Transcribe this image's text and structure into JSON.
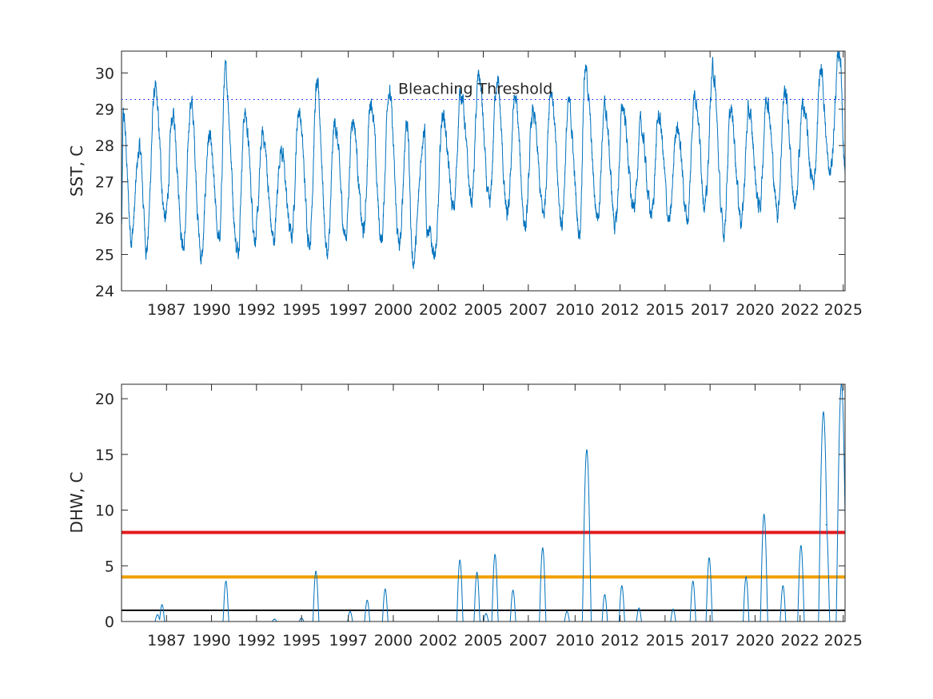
{
  "chart_data": [
    {
      "type": "line",
      "ylabel": "SST, C",
      "xlim": [
        1985.0,
        2025.2
      ],
      "ylim": [
        24,
        30.6
      ],
      "yticks": [
        24,
        25,
        26,
        27,
        28,
        29,
        30
      ],
      "xticks": [
        "1987",
        "1990",
        "1992",
        "1995",
        "1997",
        "2000",
        "2002",
        "2005",
        "2007",
        "2010",
        "2012",
        "2015",
        "2017",
        "2020",
        "2022",
        "2025"
      ],
      "xtick_values": [
        1987.5,
        1990.0,
        1992.5,
        1995.0,
        1997.6,
        2000.1,
        2002.6,
        2005.1,
        2007.6,
        2010.2,
        2012.7,
        2015.2,
        2017.7,
        2020.2,
        2022.7,
        2025.1
      ],
      "grid": false,
      "threshold": {
        "label": "Bleaching Threshold",
        "value": 29.27,
        "color": "#0000ff",
        "style": "dotted"
      },
      "series": [
        {
          "color": "#0072bd",
          "seasonal_peaks": [
            [
              1985.1,
              28.8
            ],
            [
              1986.0,
              27.9
            ],
            [
              1986.85,
              29.5
            ],
            [
              1987.85,
              28.8
            ],
            [
              1988.85,
              29.2
            ],
            [
              1989.85,
              28.2
            ],
            [
              1990.75,
              30.0
            ],
            [
              1991.85,
              28.9
            ],
            [
              1992.85,
              28.3
            ],
            [
              1993.85,
              27.9
            ],
            [
              1994.85,
              29.0
            ],
            [
              1995.85,
              29.6
            ],
            [
              1996.85,
              28.6
            ],
            [
              1997.85,
              28.8
            ],
            [
              1998.85,
              29.3
            ],
            [
              1999.85,
              29.6
            ],
            [
              2000.85,
              28.7
            ],
            [
              2001.85,
              28.6
            ],
            [
              2002.85,
              28.9
            ],
            [
              2003.85,
              29.5
            ],
            [
              2004.85,
              29.9
            ],
            [
              2005.85,
              29.8
            ],
            [
              2006.85,
              29.3
            ],
            [
              2007.85,
              28.9
            ],
            [
              2008.85,
              29.6
            ],
            [
              2009.85,
              29.1
            ],
            [
              2010.75,
              30.1
            ],
            [
              2011.85,
              29.0
            ],
            [
              2012.85,
              29.1
            ],
            [
              2013.85,
              28.5
            ],
            [
              2014.85,
              28.8
            ],
            [
              2015.85,
              28.6
            ],
            [
              2016.85,
              29.5
            ],
            [
              2017.85,
              30.1
            ],
            [
              2018.85,
              28.9
            ],
            [
              2019.85,
              28.9
            ],
            [
              2020.85,
              29.4
            ],
            [
              2021.85,
              29.5
            ],
            [
              2022.85,
              29.1
            ],
            [
              2023.85,
              30.1
            ],
            [
              2024.9,
              30.6
            ]
          ],
          "seasonal_troughs": [
            [
              1985.0,
              25.8
            ],
            [
              1985.55,
              25.5
            ],
            [
              1986.4,
              25.2
            ],
            [
              1987.45,
              26.0
            ],
            [
              1988.45,
              25.2
            ],
            [
              1989.45,
              24.9
            ],
            [
              1990.45,
              25.4
            ],
            [
              1991.45,
              25.1
            ],
            [
              1992.45,
              25.5
            ],
            [
              1993.45,
              25.4
            ],
            [
              1994.45,
              25.5
            ],
            [
              1995.45,
              25.4
            ],
            [
              1996.45,
              25.0
            ],
            [
              1997.45,
              25.5
            ],
            [
              1998.45,
              25.6
            ],
            [
              1999.45,
              25.4
            ],
            [
              2000.45,
              25.2
            ],
            [
              2001.2,
              24.8
            ],
            [
              2001.95,
              25.6
            ],
            [
              2002.45,
              25.1
            ],
            [
              2003.45,
              26.2
            ],
            [
              2004.45,
              26.5
            ],
            [
              2005.45,
              26.3
            ],
            [
              2006.45,
              26.0
            ],
            [
              2007.45,
              25.8
            ],
            [
              2008.45,
              26.1
            ],
            [
              2009.45,
              25.9
            ],
            [
              2010.45,
              25.6
            ],
            [
              2011.45,
              26.1
            ],
            [
              2012.45,
              25.8
            ],
            [
              2013.45,
              26.2
            ],
            [
              2014.45,
              26.1
            ],
            [
              2015.45,
              25.9
            ],
            [
              2016.45,
              26.0
            ],
            [
              2017.45,
              26.4
            ],
            [
              2018.45,
              25.6
            ],
            [
              2019.45,
              26.0
            ],
            [
              2020.45,
              26.3
            ],
            [
              2021.45,
              26.2
            ],
            [
              2022.45,
              26.3
            ],
            [
              2023.45,
              26.9
            ],
            [
              2024.35,
              27.2
            ],
            [
              2025.2,
              27.4
            ]
          ]
        }
      ]
    },
    {
      "type": "line",
      "ylabel": "DHW, C",
      "xlim": [
        1985.0,
        2025.2
      ],
      "ylim": [
        0,
        21.3
      ],
      "yticks": [
        0,
        5,
        10,
        15,
        20
      ],
      "xticks": [
        "1987",
        "1990",
        "1992",
        "1995",
        "1997",
        "2000",
        "2002",
        "2005",
        "2007",
        "2010",
        "2012",
        "2015",
        "2017",
        "2020",
        "2022",
        "2025"
      ],
      "xtick_values": [
        1987.5,
        1990.0,
        1992.5,
        1995.0,
        1997.6,
        2000.1,
        2002.6,
        2005.1,
        2007.6,
        2010.2,
        2012.7,
        2015.2,
        2017.7,
        2020.2,
        2022.7,
        2025.1
      ],
      "grid": false,
      "reference_lines": [
        {
          "value": 1,
          "color": "#000000"
        },
        {
          "value": 4,
          "color": "#f0a000"
        },
        {
          "value": 8,
          "color": "#e31a1c"
        }
      ],
      "series": [
        {
          "color": "#0072bd",
          "events": [
            [
              1987.0,
              0.6
            ],
            [
              1987.25,
              1.5
            ],
            [
              1990.8,
              3.6
            ],
            [
              1993.5,
              0.2
            ],
            [
              1995.0,
              0.3
            ],
            [
              1995.8,
              4.5
            ],
            [
              1997.7,
              0.9
            ],
            [
              1998.65,
              1.9
            ],
            [
              1999.65,
              2.9
            ],
            [
              2003.8,
              5.5
            ],
            [
              2004.75,
              4.4
            ],
            [
              2005.25,
              0.7
            ],
            [
              2005.75,
              6.0
            ],
            [
              2006.75,
              2.8
            ],
            [
              2008.4,
              6.6
            ],
            [
              2009.75,
              0.9
            ],
            [
              2010.85,
              15.4
            ],
            [
              2011.85,
              2.4
            ],
            [
              2012.8,
              3.2
            ],
            [
              2013.75,
              1.2
            ],
            [
              2015.65,
              1.1
            ],
            [
              2016.75,
              3.6
            ],
            [
              2017.65,
              5.7
            ],
            [
              2019.7,
              4.0
            ],
            [
              2020.7,
              9.6
            ],
            [
              2021.75,
              3.2
            ],
            [
              2022.75,
              6.8
            ],
            [
              2024.0,
              18.8
            ],
            [
              2024.15,
              8.7
            ],
            [
              2025.0,
              21.3
            ]
          ]
        }
      ]
    }
  ]
}
